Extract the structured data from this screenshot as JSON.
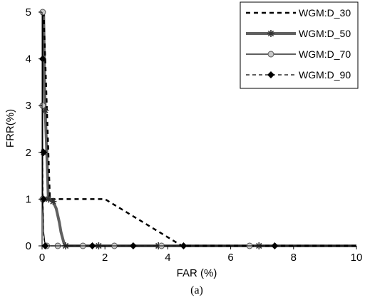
{
  "chart_data": {
    "type": "line",
    "caption": "(a)",
    "xlabel": "FAR (%)",
    "ylabel": "FRR(%)",
    "xlim": [
      0,
      10
    ],
    "ylim": [
      0,
      5
    ],
    "xticks": [
      "0",
      "2",
      "4",
      "6",
      "8",
      "10"
    ],
    "yticks": [
      "0",
      "1",
      "2",
      "3",
      "4",
      "5"
    ],
    "grid": false,
    "legend_position": "top-right",
    "series": [
      {
        "name": "WGM:D_30",
        "style": "dashed-thick",
        "color": "#000000",
        "marker": "none",
        "x": [
          0.05,
          0.1,
          0.15,
          0.2,
          0.25,
          2.0,
          4.45,
          10
        ],
        "y": [
          5,
          4,
          3,
          2,
          1,
          1,
          0,
          0
        ],
        "markers_x": [],
        "markers_y": []
      },
      {
        "name": "WGM:D_50",
        "style": "solid-thick",
        "color": "#606060",
        "marker": "asterisk",
        "x": [
          0.05,
          0.08,
          0.1,
          0.15,
          0.2,
          0.25,
          0.35,
          0.45,
          0.55,
          0.6,
          0.7,
          0.75,
          10
        ],
        "y": [
          5,
          3.5,
          2.9,
          2,
          1,
          1,
          0.95,
          0.8,
          0.5,
          0.3,
          0.05,
          0,
          0
        ],
        "markers_x": [
          0.05,
          0.1,
          0.2,
          0.35,
          0.75,
          1.8,
          3.7,
          6.9
        ],
        "markers_y": [
          2,
          2.9,
          1,
          0.95,
          0,
          0,
          0,
          0
        ]
      },
      {
        "name": "WGM:D_70",
        "style": "solid-thin",
        "color": "#000000",
        "marker": "circle",
        "x": [
          0.02,
          0.02,
          0.02,
          0.05,
          0.1,
          10
        ],
        "y": [
          5,
          3,
          1,
          0.3,
          0,
          0
        ],
        "markers_x": [
          0.02,
          0.02,
          0.02,
          0.15,
          0.5,
          1.3,
          2.3,
          3.8,
          6.6
        ],
        "markers_y": [
          5,
          3,
          1,
          0,
          0,
          0,
          0,
          0,
          0
        ]
      },
      {
        "name": "WGM:D_90",
        "style": "dashed-thin",
        "color": "#000000",
        "marker": "diamond",
        "x": [
          0.02,
          0.02,
          0.03,
          0.05,
          0.1,
          10
        ],
        "y": [
          4,
          2,
          1,
          0.2,
          0,
          0
        ],
        "markers_x": [
          0.02,
          0.05,
          0.05,
          0.1,
          1.6,
          2.9,
          4.5,
          7.4
        ],
        "markers_y": [
          4,
          2,
          1,
          0,
          0,
          0,
          0,
          0
        ]
      }
    ]
  }
}
